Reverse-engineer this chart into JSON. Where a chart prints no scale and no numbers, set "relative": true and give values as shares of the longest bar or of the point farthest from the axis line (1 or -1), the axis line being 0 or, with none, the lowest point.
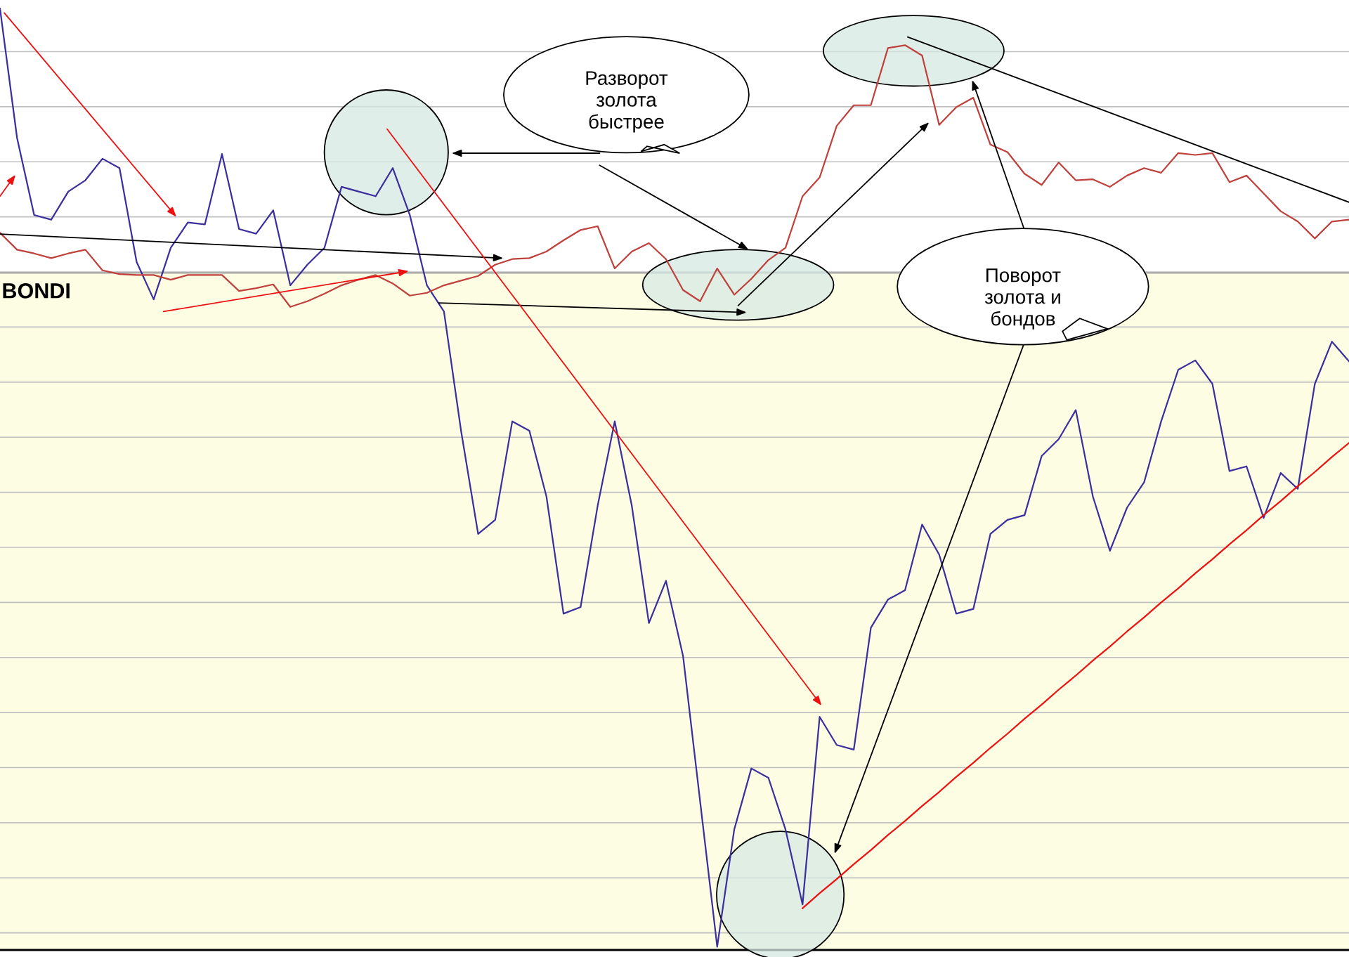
{
  "chart_data": {
    "type": "line",
    "relative": true,
    "grid": "y",
    "marker": "none",
    "line_style": "solid",
    "categories": [
      null,
      null,
      null,
      null,
      null,
      null,
      null,
      null,
      null,
      null,
      null,
      null,
      null,
      null,
      null,
      null,
      null,
      null,
      null,
      null,
      null,
      null,
      null,
      null,
      null,
      null,
      null,
      null,
      null,
      null,
      null,
      null,
      null,
      null,
      null,
      null,
      null,
      null,
      null,
      null,
      null,
      null,
      null,
      null,
      null,
      null,
      null,
      null,
      null,
      null,
      null,
      null,
      null,
      null,
      null,
      null,
      null,
      null,
      null,
      null,
      null,
      null,
      null,
      null,
      null,
      null,
      null,
      null,
      null,
      null,
      null,
      null,
      null,
      null,
      null,
      null,
      null,
      null,
      null,
      null
    ],
    "annotations": [
      "BONDI",
      "Разворот\nзолота\nбыстрее",
      "Поворот\nзолота и\nбондов"
    ],
    "series": [
      {
        "color": "#3b2f9e",
        "values": [
          1.0,
          0.862,
          0.78,
          0.775,
          0.805,
          0.817,
          0.84,
          0.83,
          0.73,
          0.69,
          0.745,
          0.772,
          0.77,
          0.845,
          0.765,
          0.76,
          0.785,
          0.705,
          0.727,
          0.745,
          0.81,
          0.805,
          0.8,
          0.83,
          0.78,
          0.705,
          0.677,
          0.55,
          0.44,
          0.455,
          0.56,
          0.55,
          0.48,
          0.355,
          0.362,
          0.47,
          0.56,
          0.47,
          0.345,
          0.39,
          0.31,
          0.155,
          0.0,
          0.125,
          0.19,
          0.18,
          0.125,
          0.045,
          0.245,
          0.215,
          0.21,
          0.34,
          0.37,
          0.38,
          0.45,
          0.418,
          0.355,
          0.36,
          0.44,
          0.455,
          0.46,
          0.523,
          0.541,
          0.572,
          0.48,
          0.422,
          0.468,
          0.495,
          0.56,
          0.615,
          0.625,
          0.6,
          0.507,
          0.512,
          0.457,
          0.505,
          0.488,
          0.6,
          0.645,
          0.624
        ]
      },
      {
        "color": "#c0403c",
        "values": [
          0.761,
          0.743,
          0.739,
          0.734,
          0.739,
          0.743,
          0.721,
          0.717,
          0.716,
          0.716,
          0.711,
          0.716,
          0.716,
          0.716,
          0.699,
          0.702,
          0.706,
          0.682,
          0.688,
          0.696,
          0.705,
          0.711,
          0.716,
          0.707,
          0.694,
          0.697,
          0.705,
          0.71,
          0.715,
          0.727,
          0.733,
          0.734,
          0.741,
          0.753,
          0.764,
          0.768,
          0.723,
          0.741,
          0.75,
          0.733,
          0.7,
          0.688,
          0.723,
          0.695,
          0.712,
          0.732,
          0.745,
          0.8,
          0.82,
          0.875,
          0.897,
          0.897,
          0.958,
          0.961,
          0.95,
          0.876,
          0.895,
          0.905,
          0.855,
          0.847,
          0.824,
          0.812,
          0.836,
          0.817,
          0.818,
          0.81,
          0.822,
          0.83,
          0.825,
          0.846,
          0.844,
          0.846,
          0.815,
          0.822,
          0.803,
          0.784,
          0.773,
          0.755,
          0.773,
          0.775
        ]
      },
      {
        "color": "#ee1111",
        "values": [
          null,
          null,
          null,
          null,
          null,
          null,
          null,
          null,
          null,
          null,
          null,
          null,
          null,
          null,
          null,
          null,
          null,
          null,
          null,
          null,
          null,
          null,
          null,
          null,
          null,
          null,
          null,
          null,
          null,
          null,
          null,
          null,
          null,
          null,
          null,
          null,
          null,
          null,
          null,
          null,
          null,
          null,
          null,
          null,
          null,
          null,
          null,
          0.041,
          0.057,
          0.072,
          0.088,
          0.103,
          0.119,
          0.134,
          0.15,
          0.165,
          0.181,
          0.196,
          0.212,
          0.227,
          0.243,
          0.258,
          0.274,
          0.289,
          0.305,
          0.32,
          0.336,
          0.351,
          0.367,
          0.382,
          0.398,
          0.413,
          0.429,
          0.444,
          0.46,
          0.475,
          0.491,
          0.506,
          0.522,
          0.537
        ]
      }
    ]
  }
}
